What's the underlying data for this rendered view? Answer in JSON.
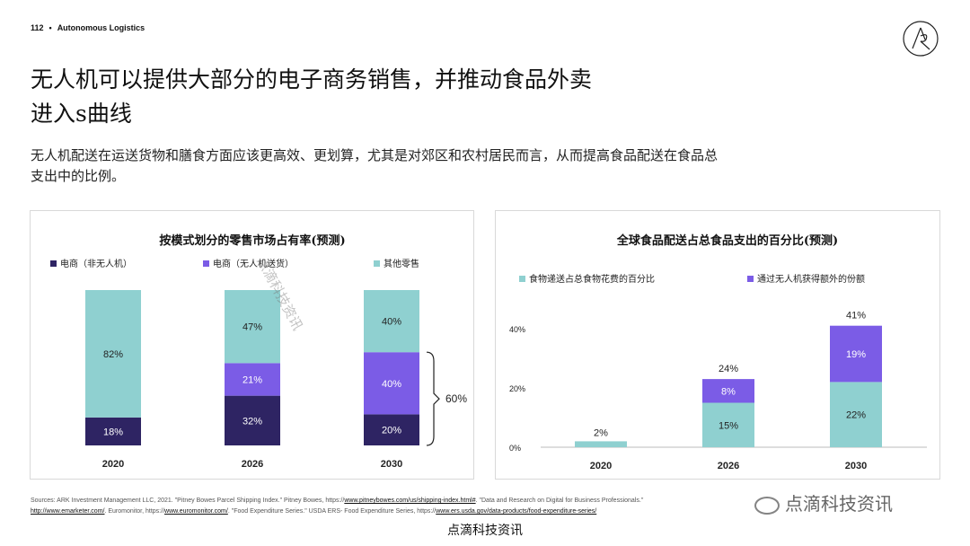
{
  "header": {
    "page_number": "112",
    "section": "Autonomous Logistics"
  },
  "title": {
    "line1": "无人机可以提供大部分的电子商务销售，并推动食品外卖",
    "line2": "进入s曲线"
  },
  "subtitle": {
    "line1": "无人机配送在运送货物和膳食方面应该更高效、更划算，尤其是对郊区和农村居民而言，从而提高食品配送在食品总",
    "line2": "支出中的比例。"
  },
  "colors": {
    "dark": "#2e2463",
    "purple": "#7b5ce6",
    "teal": "#8fd0d0"
  },
  "chart_data": [
    {
      "type": "bar",
      "stacked": true,
      "title": "按模式划分的零售市场占有率(预测)",
      "categories": [
        "2020",
        "2026",
        "2030"
      ],
      "series": [
        {
          "name": "电商（非无人机）",
          "color": "#2e2463",
          "values": [
            18,
            32,
            20
          ],
          "labels": [
            "18%",
            "32%",
            "20%"
          ]
        },
        {
          "name": "电商（无人机送货）",
          "color": "#7b5ce6",
          "values": [
            0,
            21,
            40
          ],
          "labels": [
            "",
            "21%",
            "40%"
          ]
        },
        {
          "name": "其他零售",
          "color": "#8fd0d0",
          "values": [
            82,
            47,
            40
          ],
          "labels": [
            "82%",
            "47%",
            "40%"
          ]
        }
      ],
      "annotation": {
        "text": "60%",
        "category": "2030",
        "spans_series": [
          "电商（非无人机）",
          "电商（无人机送货）"
        ]
      },
      "ylim": [
        0,
        100
      ],
      "legend": "top"
    },
    {
      "type": "bar",
      "stacked": true,
      "title": "全球食品配送占总食品支出的百分比(预测)",
      "categories": [
        "2020",
        "2026",
        "2030"
      ],
      "series": [
        {
          "name": "食物递送占总食物花费的百分比",
          "color": "#8fd0d0",
          "values": [
            2,
            15,
            22
          ],
          "labels": [
            "2%",
            "15%",
            "22%"
          ]
        },
        {
          "name": "通过无人机获得额外的份额",
          "color": "#7b5ce6",
          "values": [
            0,
            8,
            19
          ],
          "labels": [
            "",
            "8%",
            "19%"
          ]
        }
      ],
      "totals": [
        "",
        "24%",
        "41%"
      ],
      "yticks": [
        "0%",
        "20%",
        "40%"
      ],
      "ylim": [
        0,
        46
      ],
      "legend": "top"
    }
  ],
  "sources": {
    "p1": "Sources: ARK Investment Management LLC, 2021. \"Pitney Bowes Parcel Shipping Index.\" Pitney Bowes, https://",
    "l1": "www.pitneybowes.com/us/shipping-index.html#",
    "p2": ". \"Data and Research on Digital for Business Professionals.\"",
    "l2": "http://www.emarketer.com/",
    "p3": ". Euromonitor, https://",
    "l3": "www.euromonitor.com/",
    "p4": ". \"Food Expenditure Series.\" USDA ERS- Food Expenditure Series, https://",
    "l4": "www.ers.usda.gov/data-products/food-expenditure-series/"
  },
  "watermark": {
    "text": "点滴科技资讯"
  }
}
